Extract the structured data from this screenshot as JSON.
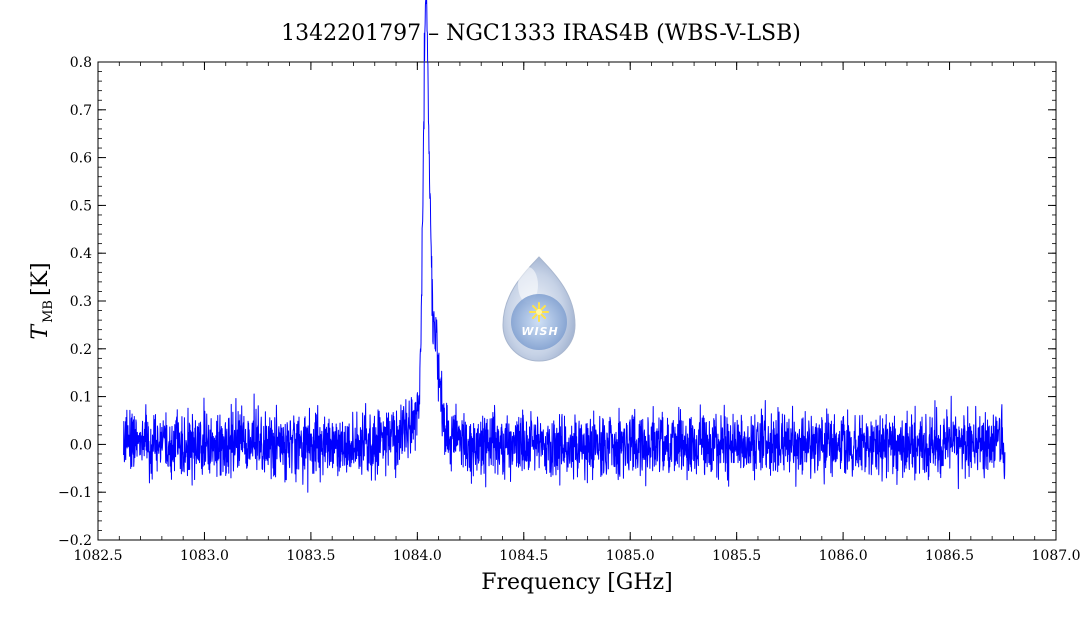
{
  "chart_data": {
    "type": "line",
    "title": "1342201797 – NGC1333 IRAS4B (WBS-V-LSB)",
    "xlabel": "Frequency [GHz]",
    "ylabel": {
      "main": "T",
      "sub": "MB",
      "unit": "[K]"
    },
    "xlim": [
      1082.5,
      1087.0
    ],
    "ylim": [
      -0.2,
      0.8
    ],
    "x_ticks": [
      "1082.5",
      "1083.0",
      "1083.5",
      "1084.0",
      "1084.5",
      "1085.0",
      "1085.5",
      "1086.0",
      "1086.5",
      "1087.0"
    ],
    "y_ticks": [
      "−0.2",
      "−0.1",
      "0.0",
      "0.1",
      "0.2",
      "0.3",
      "0.4",
      "0.5",
      "0.6",
      "0.7",
      "0.8"
    ],
    "grid": false,
    "legend": "none",
    "line_color": "#0000ff",
    "series": [
      {
        "x_range": [
          1082.62,
          1086.76
        ],
        "noise_rms_K": 0.045,
        "peak_frequency_GHz": 1084.04,
        "peak_value_K": 0.75,
        "shoulder_K": 0.38
      }
    ]
  },
  "logo": {
    "text": "WISH",
    "color": "#aabbdd"
  }
}
